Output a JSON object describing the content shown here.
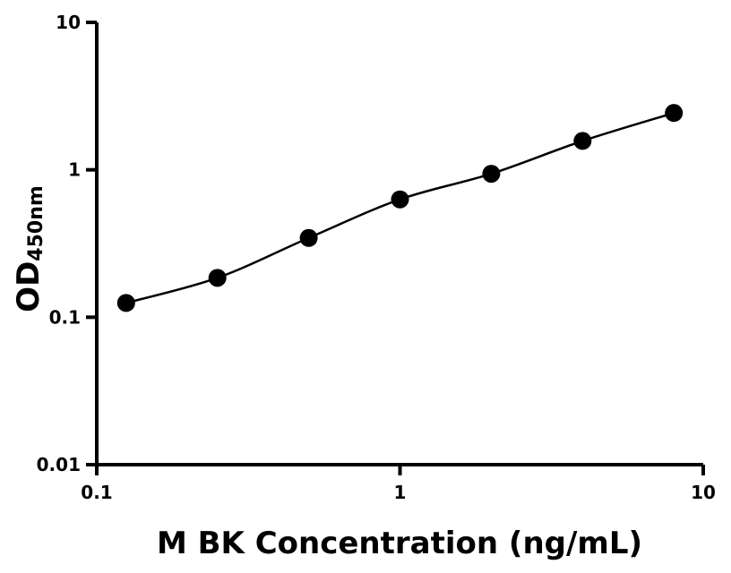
{
  "chart_data": {
    "type": "scatter",
    "title": "",
    "xlabel": "M BK Concentration (ng/mL)",
    "ylabel": {
      "main": "OD",
      "subscript": "450nm"
    },
    "x_scale": "log",
    "y_scale": "log",
    "xlim": [
      0.1,
      10
    ],
    "ylim": [
      0.01,
      10
    ],
    "x_ticks": [
      {
        "value": 0.1,
        "label": "0.1"
      },
      {
        "value": 1,
        "label": "1"
      },
      {
        "value": 10,
        "label": "10"
      }
    ],
    "y_ticks": [
      {
        "value": 0.01,
        "label": "0.01"
      },
      {
        "value": 0.1,
        "label": "0.1"
      },
      {
        "value": 1,
        "label": "1"
      },
      {
        "value": 10,
        "label": "10"
      }
    ],
    "grid": false,
    "legend": "none",
    "colors": {
      "points": "#000000",
      "curve": "#000000",
      "axes": "#000000"
    },
    "series": [
      {
        "x": [
          0.125,
          0.25,
          0.5,
          1,
          2,
          4,
          8
        ],
        "y": [
          0.125,
          0.185,
          0.345,
          0.63,
          0.94,
          1.57,
          2.43
        ],
        "fit": "smooth-curve"
      }
    ]
  }
}
